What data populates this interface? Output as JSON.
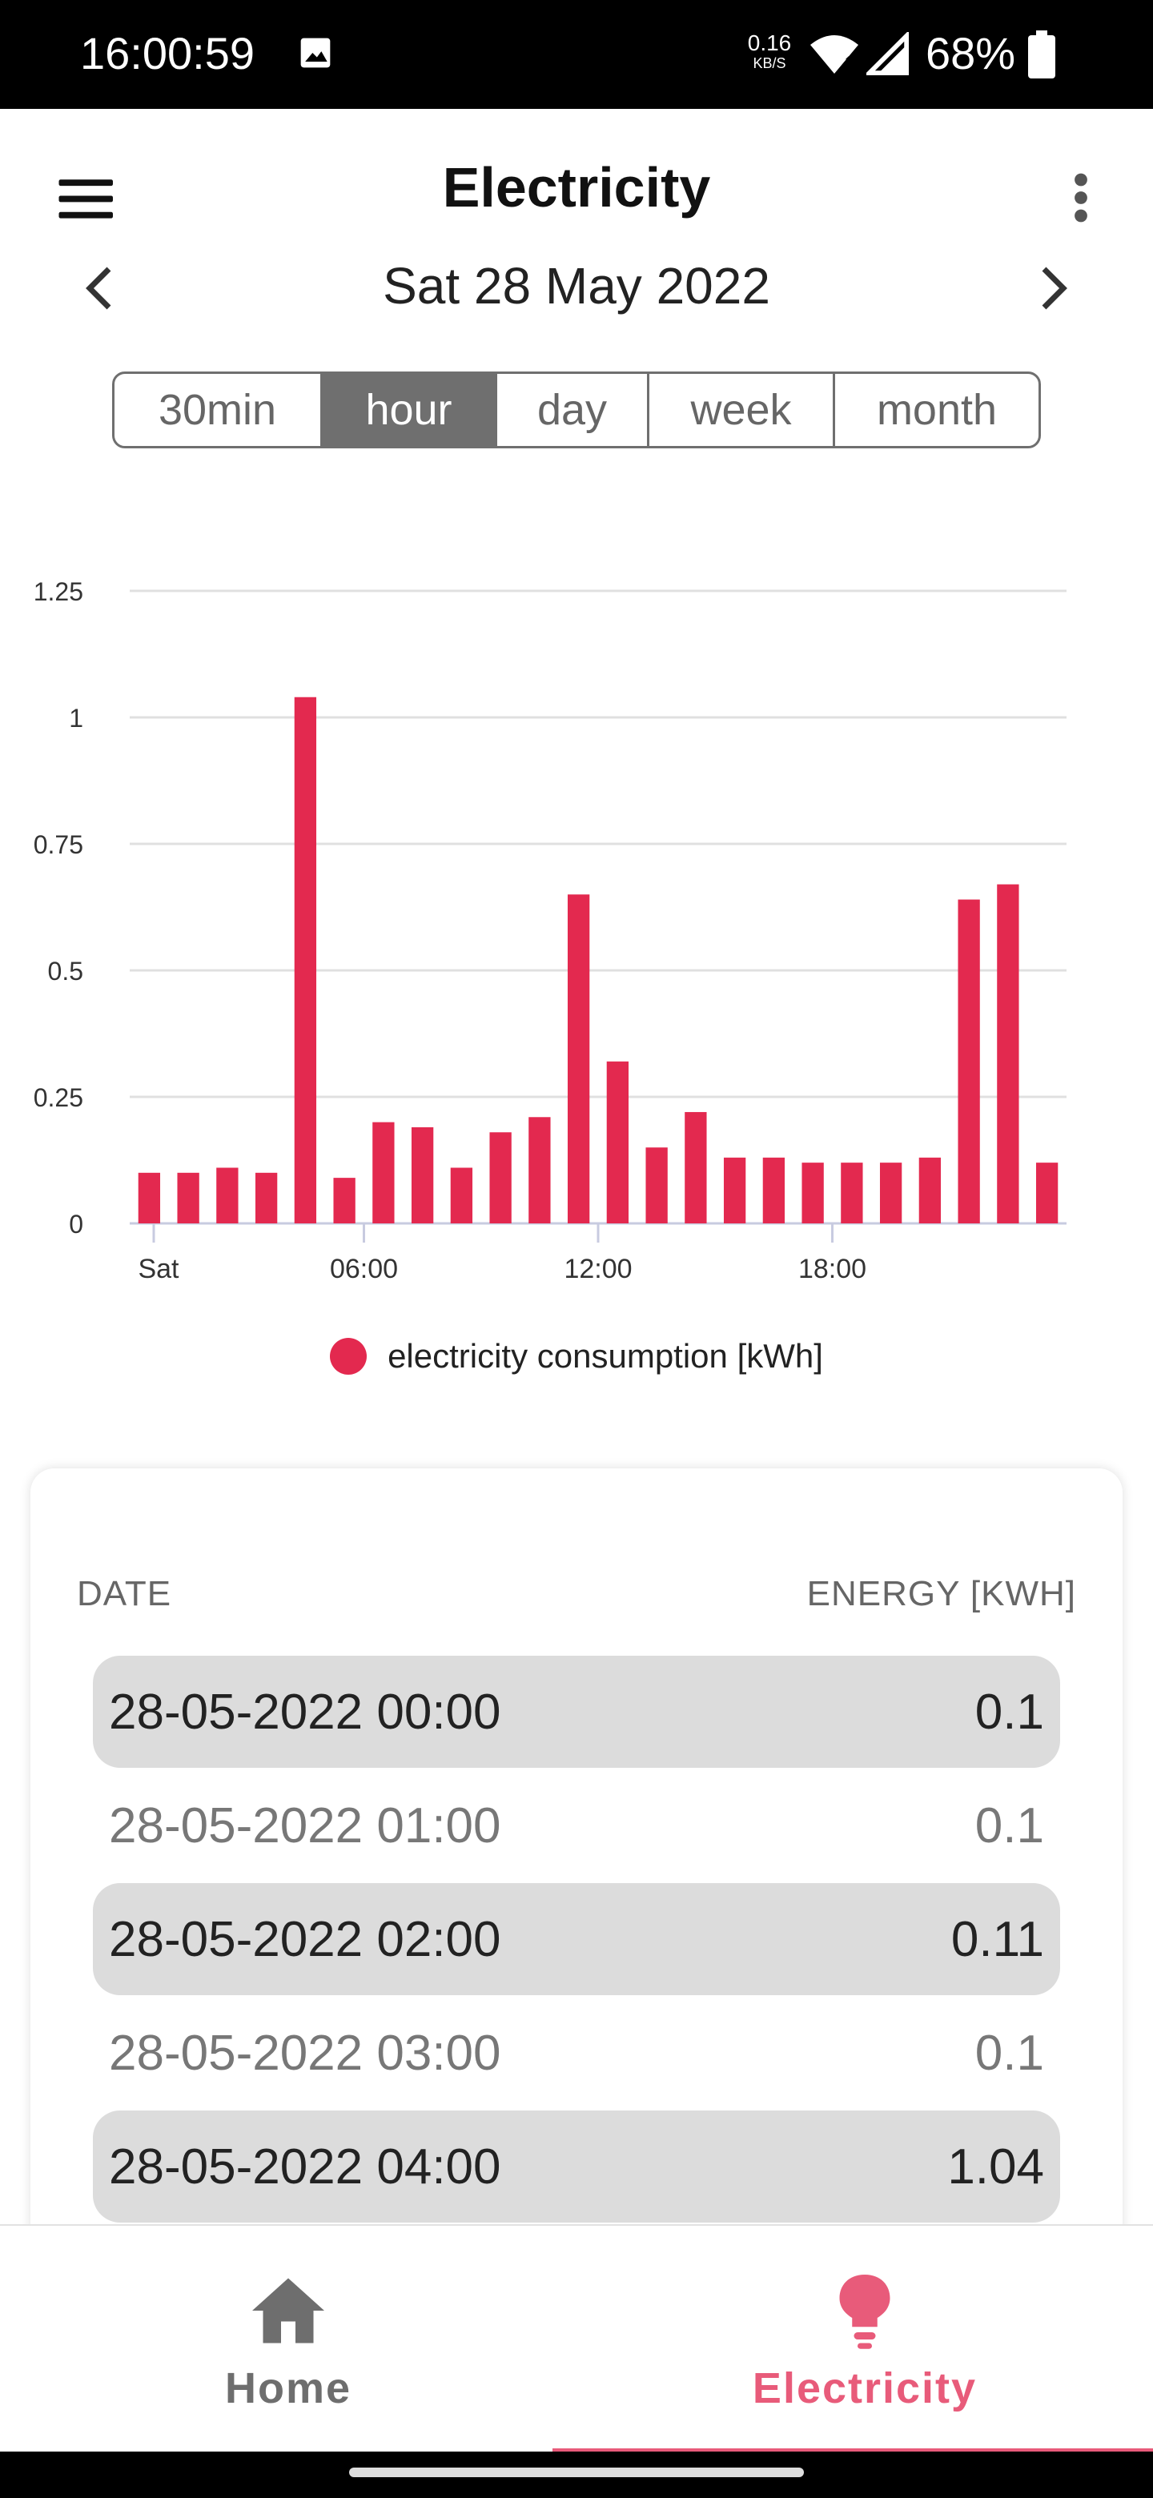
{
  "status_bar": {
    "time": "16:00:59",
    "net_speed_value": "0.16",
    "net_speed_unit": "KB/S",
    "battery": "68%"
  },
  "app_bar": {
    "title": "Electricity"
  },
  "date_nav": {
    "date": "Sat 28 May 2022"
  },
  "segment": {
    "options": [
      "30min",
      "hour",
      "day",
      "week",
      "month"
    ],
    "selected": "hour"
  },
  "colors": {
    "bar": "#e3294f",
    "accent_pink": "#e85b7a",
    "grid": "#e0e0e0",
    "axis": "#c8cbe0",
    "nav_inactive": "#6e6e6e"
  },
  "chart_data": {
    "type": "bar",
    "x": [
      0,
      1,
      2,
      3,
      4,
      5,
      6,
      7,
      8,
      9,
      10,
      11,
      12,
      13,
      14,
      15,
      16,
      17,
      18,
      19,
      20,
      21,
      22,
      23
    ],
    "x_tick_labels": [
      "Sat",
      "06:00",
      "12:00",
      "18:00"
    ],
    "x_tick_positions": [
      0,
      6,
      12,
      18
    ],
    "series": [
      {
        "name": "electricity consumption [kWh]",
        "values": [
          0.1,
          0.1,
          0.11,
          0.1,
          1.04,
          0.09,
          0.2,
          0.19,
          0.11,
          0.18,
          0.21,
          0.65,
          0.32,
          0.15,
          0.22,
          0.13,
          0.13,
          0.12,
          0.12,
          0.12,
          0.13,
          0.64,
          0.67,
          0.12
        ]
      }
    ],
    "y_ticks": [
      0,
      0.25,
      0.5,
      0.75,
      1,
      1.25
    ],
    "y_tick_labels": [
      "0",
      "0.25",
      "0.5",
      "0.75",
      "1",
      "1.25"
    ],
    "ylim": [
      0,
      1.25
    ],
    "grid": true,
    "legend_position": "bottom"
  },
  "legend": {
    "label": "electricity consumption [kWh]"
  },
  "table": {
    "headers": {
      "date": "DATE",
      "energy": "ENERGY [KWH]"
    },
    "rows": [
      {
        "date": "28-05-2022 00:00",
        "energy": "0.1"
      },
      {
        "date": "28-05-2022 01:00",
        "energy": "0.1"
      },
      {
        "date": "28-05-2022 02:00",
        "energy": "0.11"
      },
      {
        "date": "28-05-2022 03:00",
        "energy": "0.1"
      },
      {
        "date": "28-05-2022 04:00",
        "energy": "1.04"
      }
    ]
  },
  "bottom_nav": {
    "items": [
      {
        "label": "Home",
        "icon": "home-icon"
      },
      {
        "label": "Electricity",
        "icon": "lightbulb-icon"
      }
    ],
    "active": "Electricity"
  }
}
